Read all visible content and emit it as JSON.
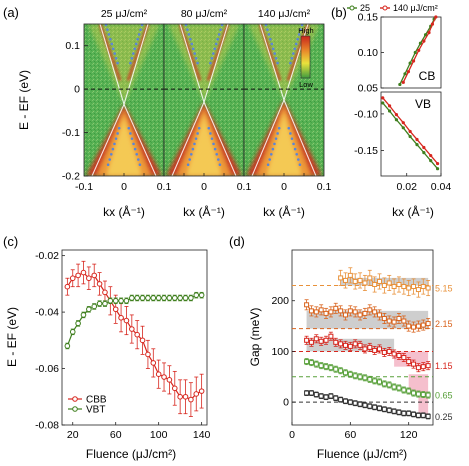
{
  "colors": {
    "cbb": "#d7261e",
    "vbt": "#3f7f1e",
    "c25": "#3f7f1e",
    "c140": "#d7261e",
    "d515": "#e8913a",
    "d215": "#d9641e",
    "d115": "#d7261e",
    "d065": "#58a03a",
    "d025": "#333333",
    "shade_gray": "#c9c9c9",
    "shade_pink": "#f4b8c8",
    "arpes_bg": "#4db04a",
    "arpes_mid": "#e9d63a",
    "arpes_hot": "#d8281a",
    "fit_dots": "#5b86d6"
  },
  "chart_data": [
    {
      "panel": "(a)",
      "type": "heatmap",
      "subplots": [
        {
          "title": "25 μJ/cm²",
          "xlabel": "kx (Å⁻¹)"
        },
        {
          "title": "80 μJ/cm²",
          "xlabel": "kx (Å⁻¹)"
        },
        {
          "title": "140 μJ/cm²",
          "xlabel": "kx (Å⁻¹)"
        }
      ],
      "ylabel": "E - EF (eV)",
      "ylim": [
        -0.2,
        0.15
      ],
      "xlim": [
        -0.1,
        0.1
      ],
      "yticks": [
        "0.1",
        "0",
        "-0.1",
        "-0.2"
      ],
      "xticks": [
        "-0.1",
        "0",
        "0.1"
      ],
      "xticks_shared": [
        "-0.1",
        "0",
        "0.1",
        "0",
        "0.1",
        "0",
        "0.1"
      ],
      "colorbar": {
        "high": "High",
        "low": "Low"
      },
      "dirac_point": [
        -0.035,
        -0.03,
        -0.025
      ],
      "fermi_level": 0
    },
    {
      "panel": "(b)",
      "type": "scatter",
      "legend": [
        "25",
        "140 μJ/cm²"
      ],
      "xlabel": "kx (Å⁻¹)",
      "xlim": [
        0.005,
        0.04
      ],
      "xticks": [
        "0.02",
        "0.04"
      ],
      "subplots": [
        {
          "label": "CB",
          "ylim": [
            0.05,
            0.15
          ],
          "yticks": [
            "0.15",
            "0.10",
            "0.05"
          ],
          "series": [
            {
              "name": "25",
              "x": [
                0.016,
                0.019,
                0.022,
                0.025,
                0.028,
                0.031,
                0.034,
                0.036
              ],
              "y": [
                0.055,
                0.07,
                0.085,
                0.1,
                0.113,
                0.125,
                0.137,
                0.147
              ]
            },
            {
              "name": "140 μJ/cm²",
              "x": [
                0.018,
                0.021,
                0.024,
                0.027,
                0.03,
                0.033,
                0.035,
                0.037
              ],
              "y": [
                0.058,
                0.073,
                0.088,
                0.103,
                0.116,
                0.128,
                0.14,
                0.15
              ]
            }
          ]
        },
        {
          "label": "VB",
          "ylim": [
            -0.185,
            -0.07
          ],
          "yticks": [
            "-0.10",
            "-0.15"
          ],
          "series": [
            {
              "name": "25",
              "x": [
                0.006,
                0.01,
                0.014,
                0.018,
                0.022,
                0.026,
                0.03,
                0.034,
                0.038
              ],
              "y": [
                -0.085,
                -0.096,
                -0.108,
                -0.119,
                -0.131,
                -0.142,
                -0.153,
                -0.164,
                -0.175
              ]
            },
            {
              "name": "140 μJ/cm²",
              "x": [
                0.006,
                0.01,
                0.014,
                0.018,
                0.022,
                0.026,
                0.03,
                0.034,
                0.038
              ],
              "y": [
                -0.078,
                -0.089,
                -0.101,
                -0.112,
                -0.124,
                -0.135,
                -0.146,
                -0.157,
                -0.168
              ]
            }
          ]
        }
      ]
    },
    {
      "panel": "(c)",
      "type": "line",
      "xlabel": "Fluence (μJ/cm²)",
      "ylabel": "E - EF (eV)",
      "xlim": [
        10,
        145
      ],
      "ylim": [
        -0.08,
        -0.018
      ],
      "xticks": [
        20,
        60,
        100,
        140
      ],
      "yticks": [
        "-0.02",
        "-0.04",
        "-0.06",
        "-0.08"
      ],
      "legend_position": "bottom-left",
      "series": [
        {
          "name": "CBB",
          "x": [
            15,
            20,
            25,
            30,
            35,
            40,
            45,
            50,
            55,
            60,
            65,
            70,
            75,
            80,
            85,
            90,
            95,
            100,
            105,
            110,
            115,
            120,
            125,
            130,
            135,
            140
          ],
          "y": [
            -0.031,
            -0.028,
            -0.027,
            -0.026,
            -0.028,
            -0.027,
            -0.03,
            -0.033,
            -0.036,
            -0.039,
            -0.042,
            -0.043,
            -0.046,
            -0.048,
            -0.05,
            -0.055,
            -0.058,
            -0.062,
            -0.063,
            -0.064,
            -0.067,
            -0.07,
            -0.07,
            -0.071,
            -0.069,
            -0.068
          ],
          "err": [
            0.003,
            0.003,
            0.004,
            0.004,
            0.004,
            0.004,
            0.004,
            0.004,
            0.005,
            0.005,
            0.005,
            0.005,
            0.005,
            0.005,
            0.005,
            0.005,
            0.005,
            0.005,
            0.005,
            0.005,
            0.006,
            0.006,
            0.006,
            0.006,
            0.006,
            0.006
          ]
        },
        {
          "name": "VBT",
          "x": [
            15,
            20,
            25,
            30,
            35,
            40,
            45,
            50,
            55,
            60,
            65,
            70,
            75,
            80,
            85,
            90,
            95,
            100,
            105,
            110,
            115,
            120,
            125,
            130,
            135,
            140
          ],
          "y": [
            -0.052,
            -0.047,
            -0.044,
            -0.041,
            -0.039,
            -0.038,
            -0.037,
            -0.037,
            -0.036,
            -0.036,
            -0.036,
            -0.036,
            -0.035,
            -0.035,
            -0.035,
            -0.035,
            -0.035,
            -0.035,
            -0.035,
            -0.035,
            -0.035,
            -0.035,
            -0.035,
            -0.035,
            -0.034,
            -0.034
          ],
          "err": [
            0.001,
            0.001,
            0.001,
            0.001,
            0.001,
            0.001,
            0.001,
            0.001,
            0.001,
            0.001,
            0.001,
            0.001,
            0.001,
            0.001,
            0.001,
            0.001,
            0.001,
            0.001,
            0.001,
            0.001,
            0.001,
            0.001,
            0.001,
            0.001,
            0.001,
            0.001
          ]
        }
      ]
    },
    {
      "panel": "(d)",
      "type": "line",
      "xlabel": "Fluence (μJ/cm²)",
      "ylabel": "Gap (meV)",
      "xlim": [
        0,
        145
      ],
      "ylim": [
        -45,
        300
      ],
      "xticks": [
        0,
        60,
        120
      ],
      "yticks": [
        0,
        100,
        200
      ],
      "series": [
        {
          "name": "5.15",
          "baseline": 230,
          "x": [
            50,
            55,
            60,
            65,
            70,
            75,
            80,
            85,
            90,
            95,
            100,
            105,
            110,
            115,
            120,
            125,
            130,
            135,
            140
          ],
          "y": [
            245,
            240,
            250,
            238,
            240,
            235,
            245,
            232,
            238,
            230,
            235,
            228,
            232,
            228,
            225,
            228,
            222,
            228,
            225
          ],
          "err": 15
        },
        {
          "name": "2.15",
          "baseline": 145,
          "x": [
            15,
            20,
            25,
            30,
            35,
            40,
            45,
            50,
            55,
            60,
            65,
            70,
            75,
            80,
            85,
            90,
            95,
            100,
            105,
            110,
            115,
            120,
            125,
            130,
            135,
            140
          ],
          "y": [
            192,
            180,
            178,
            182,
            175,
            178,
            185,
            180,
            172,
            180,
            178,
            172,
            175,
            182,
            178,
            172,
            165,
            160,
            158,
            165,
            160,
            150,
            148,
            150,
            152,
            155
          ],
          "err": 10
        },
        {
          "name": "1.15",
          "baseline": 100,
          "x": [
            15,
            20,
            25,
            30,
            35,
            40,
            45,
            50,
            55,
            60,
            65,
            70,
            75,
            80,
            85,
            90,
            95,
            100,
            105,
            110,
            115,
            120,
            125,
            130,
            135,
            140
          ],
          "y": [
            122,
            118,
            125,
            120,
            122,
            130,
            118,
            115,
            112,
            110,
            115,
            112,
            105,
            108,
            102,
            105,
            98,
            100,
            95,
            92,
            88,
            80,
            75,
            68,
            70,
            72
          ],
          "err": 8
        },
        {
          "name": "0.65",
          "baseline": 50,
          "x": [
            15,
            20,
            25,
            30,
            35,
            40,
            45,
            50,
            55,
            60,
            65,
            70,
            75,
            80,
            85,
            90,
            95,
            100,
            105,
            110,
            115,
            120,
            125,
            130,
            135,
            140
          ],
          "y": [
            80,
            78,
            75,
            72,
            70,
            68,
            65,
            62,
            58,
            55,
            52,
            50,
            48,
            45,
            42,
            40,
            36,
            34,
            30,
            28,
            24,
            22,
            18,
            16,
            15,
            14
          ],
          "err": 6
        },
        {
          "name": "0.25",
          "baseline": 0,
          "x": [
            15,
            20,
            25,
            30,
            35,
            40,
            45,
            50,
            55,
            60,
            65,
            70,
            75,
            80,
            85,
            90,
            95,
            100,
            105,
            110,
            115,
            120,
            125,
            130,
            135,
            140
          ],
          "y": [
            18,
            18,
            15,
            12,
            10,
            12,
            8,
            5,
            2,
            0,
            -2,
            -4,
            -6,
            -8,
            -10,
            -12,
            -14,
            -16,
            -18,
            -20,
            -22,
            -22,
            -24,
            -26,
            -26,
            -28
          ],
          "err": 5
        }
      ]
    }
  ],
  "labels": {
    "panel_a": "(a)",
    "panel_b": "(b)",
    "panel_c": "(c)",
    "panel_d": "(d)",
    "ylabel_a": "E - EF (eV)",
    "xlabel_a1": "kx (Å⁻¹)",
    "xlabel_a2": "kx (Å⁻¹)",
    "xlabel_a3": "kx (Å⁻¹)",
    "xlabel_b": "kx (Å⁻¹)",
    "title_a1": "25 μJ/cm²",
    "title_a2": "80 μJ/cm²",
    "title_a3": "140 μJ/cm²",
    "legend_b1": "25",
    "legend_b2": "140 μJ/cm²",
    "cb": "CB",
    "vb": "VB",
    "ylabel_c": "E - EF (eV)",
    "xlabel_c": "Fluence (μJ/cm²)",
    "legend_c1": "CBB",
    "legend_c2": "VBT",
    "ylabel_d": "Gap (meV)",
    "xlabel_d": "Fluence (μJ/cm²)"
  }
}
